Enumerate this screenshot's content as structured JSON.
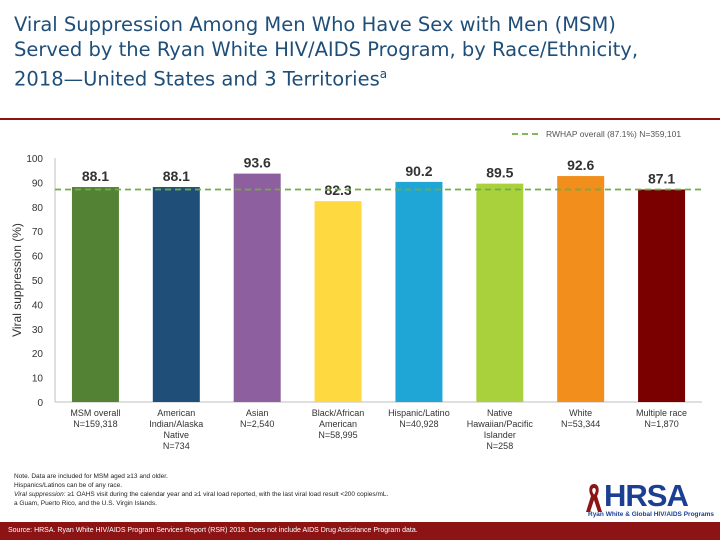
{
  "title": {
    "line1": "Viral Suppression Among Men Who Have Sex with Men (MSM)",
    "line2": "Served by the Ryan White HIV/AIDS Program, by Race/Ethnicity,",
    "line3": "2018—United States and 3 Territories",
    "superscript": "a"
  },
  "chart_data": {
    "type": "bar",
    "title": "",
    "xlabel": "",
    "ylabel": "Viral suppression (%)",
    "ylim": [
      0,
      100
    ],
    "yticks": [
      0,
      10,
      20,
      30,
      40,
      50,
      60,
      70,
      80,
      90,
      100
    ],
    "categories": [
      [
        "MSM overall",
        "N=159,318"
      ],
      [
        "American",
        "Indian/Alaska",
        "Native",
        "N=734"
      ],
      [
        "Asian",
        "N=2,540"
      ],
      [
        "Black/African",
        "American",
        "N=58,995"
      ],
      [
        "Hispanic/Latino",
        "N=40,928"
      ],
      [
        "Native",
        "Hawaiian/Pacific",
        "Islander",
        "N=258"
      ],
      [
        "White",
        "N=53,344"
      ],
      [
        "Multiple race",
        "N=1,870"
      ]
    ],
    "values": [
      88.1,
      88.1,
      93.6,
      82.3,
      90.2,
      89.5,
      92.6,
      87.1
    ],
    "value_labels": [
      "88.1",
      "88.1",
      "93.6",
      "82.3",
      "90.2",
      "89.5",
      "92.6",
      "87.1"
    ],
    "colors": [
      "#548235",
      "#1f4e79",
      "#8e5f9e",
      "#ffd940",
      "#1fa6d6",
      "#a9d13c",
      "#f28e1c",
      "#7a0000"
    ],
    "reference_line": {
      "value": 87.1,
      "label": "RWHAP overall (87.1%) N=359,101",
      "color": "#70ad47"
    },
    "legend_position": "top-right",
    "grid": false
  },
  "notes": {
    "line1": "Note. Data are included for MSM aged ≥13 and older.",
    "line2": "Hispanics/Latinos can be of any race.",
    "line3_label": "Viral suppression:",
    "line3_text": " ≥1 OAHS visit during the calendar year and ≥1 viral load reported, with the last viral load result <200 copies/mL.",
    "line4": "a Guam, Puerto Rico, and the U.S. Virgin Islands."
  },
  "logo": {
    "text": "HRSA",
    "tagline": "Ryan White & Global HIV/AIDS Programs"
  },
  "source": "Source: HRSA. Ryan White HIV/AIDS Program Services Report (RSR) 2018. Does not include AIDS Drug Assistance Program data."
}
